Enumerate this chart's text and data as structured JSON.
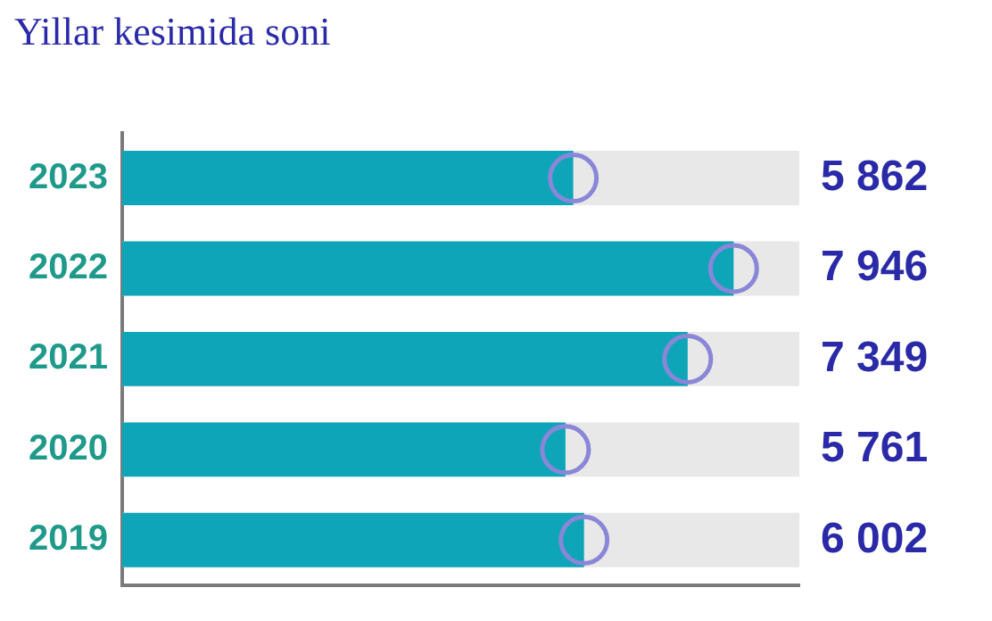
{
  "chart_data": {
    "type": "bar",
    "orientation": "horizontal",
    "title": "Yillar kesimida soni",
    "categories": [
      "2023",
      "2022",
      "2021",
      "2020",
      "2019"
    ],
    "series": [
      {
        "type": "bar",
        "color": "#0ea5b8",
        "values": [
          5862,
          7946,
          7349,
          5761,
          6002
        ],
        "value_labels": [
          "5 862",
          "7 946",
          "7 349",
          "5 761",
          "6 002"
        ]
      },
      {
        "type": "scatter",
        "color": "#8a86d8",
        "marker": "circle",
        "values": [
          5862,
          7946,
          7349,
          5761,
          6002
        ]
      }
    ],
    "xlim": [
      0,
      8800
    ],
    "tick_labels": "y",
    "grid": false,
    "legend": false
  }
}
